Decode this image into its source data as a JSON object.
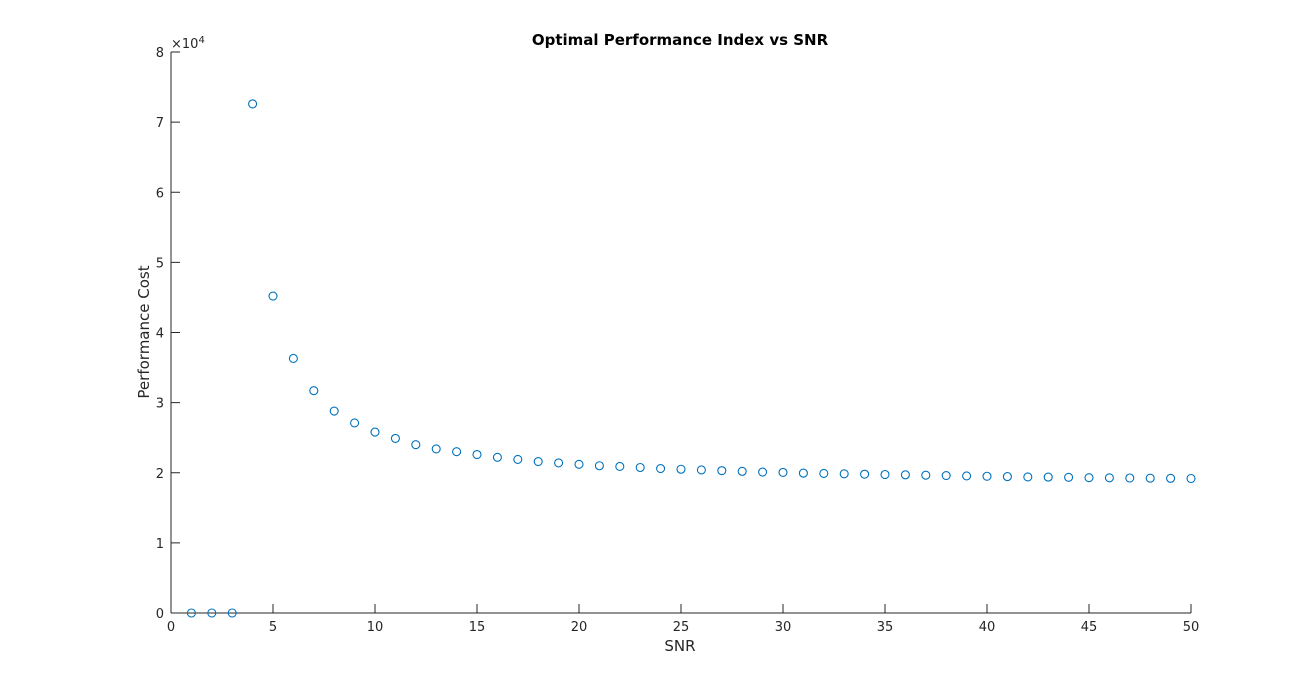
{
  "chart_data": {
    "type": "scatter",
    "title": "Optimal Performance Index vs SNR",
    "xlabel": "SNR",
    "ylabel": "Performance Cost",
    "y_exponent_base": "×10",
    "y_exponent_power": "4",
    "xlim": [
      0,
      50
    ],
    "ylim": [
      0,
      80000
    ],
    "x_ticks": [
      0,
      5,
      10,
      15,
      20,
      25,
      30,
      35,
      40,
      45,
      50
    ],
    "y_ticks": [
      0,
      10000,
      20000,
      30000,
      40000,
      50000,
      60000,
      70000,
      80000
    ],
    "y_tick_labels": [
      "0",
      "1",
      "2",
      "3",
      "4",
      "5",
      "6",
      "7",
      "8"
    ],
    "grid": false,
    "marker": "circle",
    "marker_color": "#0072bd",
    "series": [
      {
        "x": [
          1,
          2,
          3,
          4,
          5,
          6,
          7,
          8,
          9,
          10,
          11,
          12,
          13,
          14,
          15,
          16,
          17,
          18,
          19,
          20,
          21,
          22,
          23,
          24,
          25,
          26,
          27,
          28,
          29,
          30,
          31,
          32,
          33,
          34,
          35,
          36,
          37,
          38,
          39,
          40,
          41,
          42,
          43,
          44,
          45,
          46,
          47,
          48,
          49,
          50
        ],
        "y": [
          0,
          0,
          0,
          72600,
          45200,
          36300,
          31700,
          28800,
          27100,
          25800,
          24900,
          24000,
          23400,
          23000,
          22600,
          22200,
          21900,
          21600,
          21400,
          21200,
          21000,
          20900,
          20750,
          20600,
          20500,
          20400,
          20300,
          20200,
          20100,
          20050,
          19950,
          19900,
          19850,
          19800,
          19750,
          19700,
          19650,
          19600,
          19550,
          19500,
          19450,
          19400,
          19380,
          19350,
          19300,
          19280,
          19250,
          19220,
          19200,
          19180
        ]
      }
    ]
  }
}
